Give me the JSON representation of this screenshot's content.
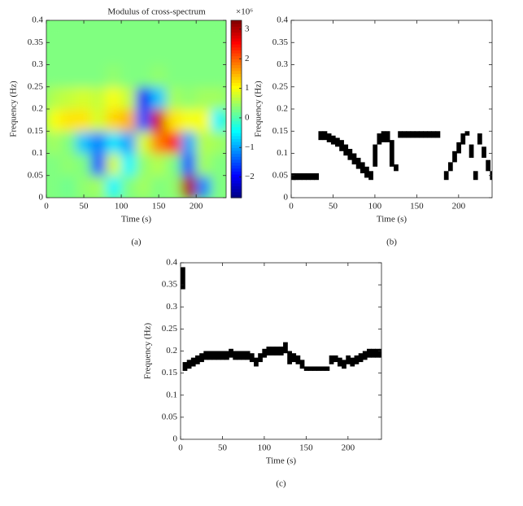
{
  "chart_data": [
    {
      "type": "heatmap",
      "title": "Modulus of cross-spectrum",
      "xlabel": "Time (s)",
      "ylabel": "Frequency (Hz)",
      "caption": "(a)",
      "xlim": [
        0,
        240
      ],
      "ylim": [
        0,
        0.4
      ],
      "xticks": [
        0,
        50,
        100,
        150,
        200
      ],
      "yticks": [
        0,
        0.05,
        0.1,
        0.15,
        0.2,
        0.25,
        0.3,
        0.35,
        0.4
      ],
      "colormap": "jet",
      "clim": [
        -2.7,
        3.3
      ],
      "colorbar_ticks": [
        {
          "value": -2,
          "label": "−2"
        },
        {
          "value": -1,
          "label": "−1"
        },
        0,
        1,
        2,
        3
      ],
      "colorbar_scale": "×10⁶",
      "z": [
        [
          0.3,
          0.2,
          0.4,
          0.5,
          -0.5,
          0.3,
          0.5,
          0.3,
          0.4,
          3.0,
          -1.2,
          0.3
        ],
        [
          0.3,
          0.4,
          0.3,
          -1.5,
          0.8,
          -0.5,
          0.4,
          0.6,
          0.3,
          -1.5,
          0.5,
          0.3
        ],
        [
          0.5,
          0.3,
          -0.8,
          -1.2,
          -0.6,
          -1.0,
          0.8,
          1.8,
          2.4,
          -1.0,
          0.6,
          0.5
        ],
        [
          1.0,
          1.2,
          1.2,
          0.8,
          1.3,
          1.5,
          -1.5,
          2.8,
          1.2,
          1.0,
          1.0,
          -0.5
        ],
        [
          0.6,
          0.7,
          0.8,
          0.7,
          1.0,
          0.7,
          -2.0,
          -0.8,
          0.5,
          0.4,
          0.5,
          0.5
        ],
        [
          0.3,
          0.3,
          0.3,
          0.3,
          0.4,
          0.3,
          0.3,
          0.4,
          0.3,
          0.3,
          0.3,
          0.3
        ],
        [
          0.3,
          0.3,
          0.3,
          0.3,
          0.3,
          0.3,
          0.3,
          0.3,
          0.3,
          0.3,
          0.3,
          0.3
        ],
        [
          0.3,
          0.3,
          0.3,
          0.3,
          0.3,
          0.3,
          0.3,
          0.3,
          0.3,
          0.3,
          0.3,
          0.3
        ]
      ]
    },
    {
      "type": "band",
      "xlabel": "Time (s)",
      "ylabel": "Frequency (Hz)",
      "caption": "(b)",
      "color": "#000000",
      "xlim": [
        0,
        240
      ],
      "ylim": [
        0,
        0.4
      ],
      "xticks": [
        0,
        50,
        100,
        150,
        200
      ],
      "yticks": [
        0,
        0.05,
        0.1,
        0.15,
        0.2,
        0.25,
        0.3,
        0.35,
        0.4
      ],
      "x": [
        0,
        5,
        10,
        15,
        20,
        25,
        30,
        35,
        40,
        45,
        50,
        55,
        60,
        65,
        70,
        75,
        80,
        85,
        90,
        95,
        100,
        105,
        110,
        115,
        120,
        125,
        130,
        135,
        140,
        145,
        150,
        155,
        160,
        165,
        170,
        175,
        180,
        185,
        190,
        195,
        200,
        205,
        210,
        215,
        220,
        225,
        230,
        235,
        240
      ],
      "low": [
        0.04,
        0.04,
        0.04,
        0.04,
        0.04,
        0.04,
        0.04,
        0.13,
        0.13,
        0.125,
        0.12,
        0.115,
        0.105,
        0.095,
        0.085,
        0.075,
        0.065,
        0.055,
        0.045,
        0.04,
        0.07,
        0.12,
        0.125,
        0.125,
        0.07,
        0.06,
        0.135,
        0.135,
        0.135,
        0.135,
        0.135,
        0.135,
        0.135,
        0.135,
        0.135,
        0.135,
        null,
        0.04,
        0.06,
        0.08,
        0.1,
        0.12,
        0.14,
        0.09,
        0.04,
        0.12,
        0.09,
        0.06,
        0.04
      ],
      "high": [
        0.055,
        0.055,
        0.055,
        0.055,
        0.055,
        0.055,
        0.055,
        0.15,
        0.15,
        0.145,
        0.14,
        0.135,
        0.13,
        0.12,
        0.11,
        0.1,
        0.09,
        0.08,
        0.07,
        0.06,
        0.12,
        0.145,
        0.15,
        0.15,
        0.13,
        0.075,
        0.15,
        0.15,
        0.15,
        0.15,
        0.15,
        0.15,
        0.15,
        0.15,
        0.15,
        0.15,
        null,
        0.06,
        0.08,
        0.105,
        0.125,
        0.145,
        0.15,
        0.12,
        0.06,
        0.145,
        0.115,
        0.085,
        0.06
      ]
    },
    {
      "type": "band",
      "xlabel": "Time (s)",
      "ylabel": "Frequency (Hz)",
      "caption": "(c)",
      "color": "#000000",
      "xlim": [
        0,
        240
      ],
      "ylim": [
        0,
        0.4
      ],
      "xticks": [
        0,
        50,
        100,
        150,
        200
      ],
      "yticks": [
        0,
        0.05,
        0.1,
        0.15,
        0.2,
        0.25,
        0.3,
        0.35,
        0.4
      ],
      "x": [
        0,
        5,
        10,
        15,
        20,
        25,
        30,
        35,
        40,
        45,
        50,
        55,
        60,
        65,
        70,
        75,
        80,
        85,
        90,
        95,
        100,
        105,
        110,
        115,
        120,
        125,
        130,
        135,
        140,
        145,
        150,
        155,
        160,
        165,
        170,
        175,
        180,
        185,
        190,
        195,
        200,
        205,
        210,
        215,
        220,
        225,
        230,
        235,
        240
      ],
      "low": [
        0.34,
        0.155,
        0.16,
        0.165,
        0.17,
        0.175,
        0.18,
        0.18,
        0.18,
        0.18,
        0.18,
        0.18,
        0.185,
        0.18,
        0.18,
        0.18,
        0.18,
        0.175,
        0.165,
        0.175,
        0.185,
        0.19,
        0.19,
        0.19,
        0.19,
        0.195,
        0.17,
        0.175,
        0.17,
        0.16,
        0.155,
        0.155,
        0.155,
        0.155,
        0.155,
        0.155,
        0.17,
        0.175,
        0.165,
        0.16,
        0.17,
        0.165,
        0.17,
        0.175,
        0.18,
        0.185,
        0.185,
        0.185,
        0.185
      ],
      "high": [
        0.39,
        0.175,
        0.18,
        0.185,
        0.19,
        0.195,
        0.2,
        0.2,
        0.2,
        0.2,
        0.2,
        0.2,
        0.205,
        0.2,
        0.2,
        0.2,
        0.2,
        0.195,
        0.185,
        0.195,
        0.205,
        0.21,
        0.21,
        0.21,
        0.21,
        0.22,
        0.2,
        0.195,
        0.19,
        0.18,
        0.165,
        0.165,
        0.165,
        0.165,
        0.165,
        0.165,
        0.19,
        0.19,
        0.185,
        0.18,
        0.19,
        0.185,
        0.19,
        0.195,
        0.2,
        0.205,
        0.205,
        0.205,
        0.205
      ]
    }
  ]
}
